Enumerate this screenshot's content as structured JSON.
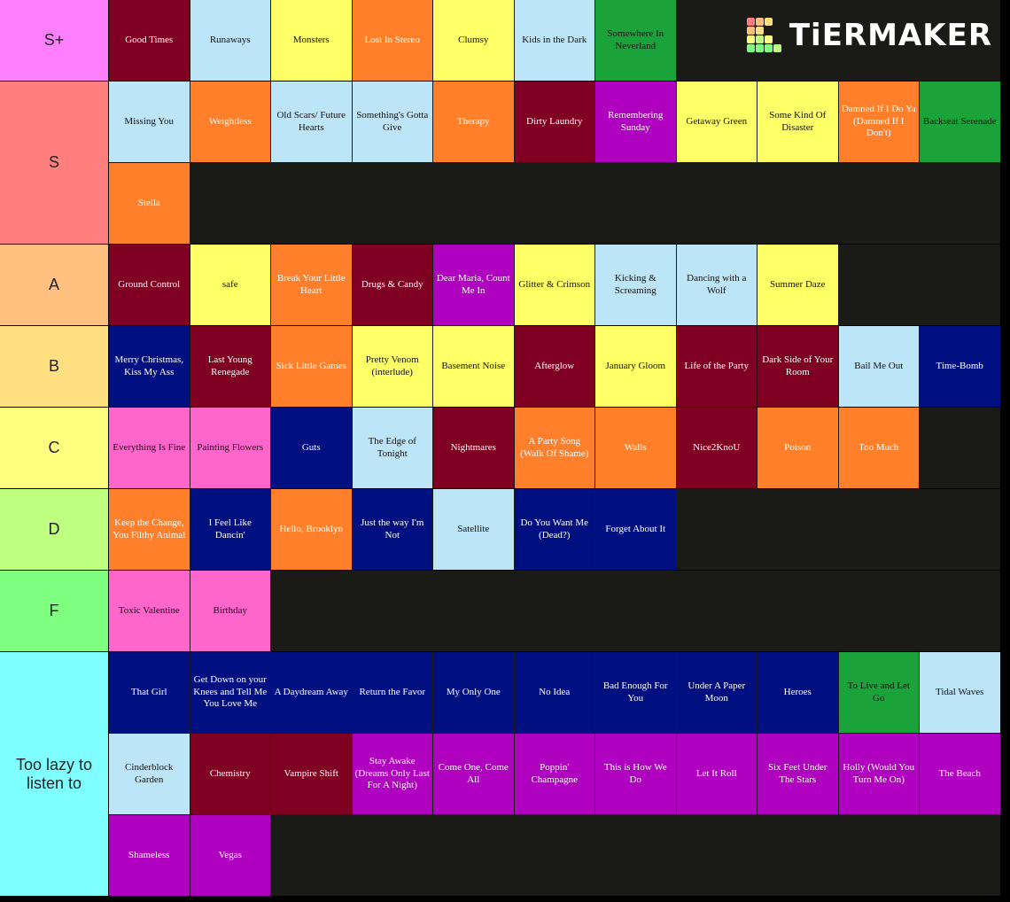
{
  "logo": "TiERMAKER",
  "tiers": [
    {
      "label": "S+",
      "color": "#ff7fff",
      "items": [
        {
          "text": "Good Times",
          "color": "#7f0020"
        },
        {
          "text": "Runaways",
          "color": "#bde5f8"
        },
        {
          "text": "Monsters",
          "color": "#ffff66"
        },
        {
          "text": "Lost In Stereo",
          "color": "#ff7f2a"
        },
        {
          "text": "Clumsy",
          "color": "#ffff66"
        },
        {
          "text": "Kids in the Dark",
          "color": "#bde5f8"
        },
        {
          "text": "Somewhere In Neverland",
          "color": "#1aa33a"
        }
      ]
    },
    {
      "label": "S",
      "color": "#ff7f7f",
      "items": [
        {
          "text": "Missing You",
          "color": "#bde5f8"
        },
        {
          "text": "Weightless",
          "color": "#ff7f2a"
        },
        {
          "text": "Old Scars/ Future Hearts",
          "color": "#bde5f8"
        },
        {
          "text": "Something's Gotta Give",
          "color": "#bde5f8"
        },
        {
          "text": "Therapy",
          "color": "#ff7f2a"
        },
        {
          "text": "Dirty Laundry",
          "color": "#7f0020"
        },
        {
          "text": "Remembering Sunday",
          "color": "#b000c0"
        },
        {
          "text": "Getaway Green",
          "color": "#ffff66"
        },
        {
          "text": "Some Kind Of Disaster",
          "color": "#ffff66"
        },
        {
          "text": "Damned If I Do Ya (Damned If I Don't)",
          "color": "#ff7f2a"
        },
        {
          "text": "Backseat Serenade",
          "color": "#1aa33a"
        },
        {
          "text": "Stella",
          "color": "#ff7f2a"
        }
      ]
    },
    {
      "label": "A",
      "color": "#ffbf7f",
      "items": [
        {
          "text": "Ground Control",
          "color": "#7f0020"
        },
        {
          "text": "safe",
          "color": "#ffff66"
        },
        {
          "text": "Break Your Little Heart",
          "color": "#ff7f2a"
        },
        {
          "text": "Drugs & Candy",
          "color": "#7f0020"
        },
        {
          "text": "Dear Maria, Count Me In",
          "color": "#b000c0"
        },
        {
          "text": "Glitter & Crimson",
          "color": "#ffff66"
        },
        {
          "text": "Kicking & Screaming",
          "color": "#bde5f8"
        },
        {
          "text": "Dancing with a Wolf",
          "color": "#bde5f8"
        },
        {
          "text": "Summer Daze",
          "color": "#ffff66"
        }
      ]
    },
    {
      "label": "B",
      "color": "#ffdf7f",
      "items": [
        {
          "text": "Merry Christmas, Kiss My Ass",
          "color": "#001080"
        },
        {
          "text": "Last Young Renegade",
          "color": "#7f0020"
        },
        {
          "text": "Sick Little Games",
          "color": "#ff7f2a"
        },
        {
          "text": "Pretty Venom (interlude)",
          "color": "#ffff66"
        },
        {
          "text": "Basement Noise",
          "color": "#ffff66"
        },
        {
          "text": "Afterglow",
          "color": "#7f0020"
        },
        {
          "text": "January Gloom",
          "color": "#ffff66"
        },
        {
          "text": "Life of the Party",
          "color": "#7f0020"
        },
        {
          "text": "Dark Side of Your Room",
          "color": "#7f0020"
        },
        {
          "text": "Bail Me Out",
          "color": "#bde5f8"
        },
        {
          "text": "Time-Bomb",
          "color": "#001080"
        }
      ]
    },
    {
      "label": "C",
      "color": "#ffff7f",
      "items": [
        {
          "text": "Everything Is Fine",
          "color": "#ff66cc"
        },
        {
          "text": "Painting Flowers",
          "color": "#ff66cc"
        },
        {
          "text": "Guts",
          "color": "#001080"
        },
        {
          "text": "The Edge of Tonight",
          "color": "#bde5f8"
        },
        {
          "text": "Nightmares",
          "color": "#7f0020"
        },
        {
          "text": "A Party Song (Walk Of Shame)",
          "color": "#ff7f2a"
        },
        {
          "text": "Walls",
          "color": "#ff7f2a"
        },
        {
          "text": "Nice2KnoU",
          "color": "#7f0020"
        },
        {
          "text": "Poison",
          "color": "#ff7f2a"
        },
        {
          "text": "Too Much",
          "color": "#ff7f2a"
        }
      ]
    },
    {
      "label": "D",
      "color": "#bfff7f",
      "items": [
        {
          "text": "Keep the Change, You Filthy Animal",
          "color": "#ff7f2a"
        },
        {
          "text": "I Feel Like Dancin'",
          "color": "#001080"
        },
        {
          "text": "Hello, Brooklyn",
          "color": "#ff7f2a"
        },
        {
          "text": "Just the way I'm Not",
          "color": "#001080"
        },
        {
          "text": "Satellite",
          "color": "#bde5f8"
        },
        {
          "text": "Do You Want Me (Dead?)",
          "color": "#001080"
        },
        {
          "text": "Forget About It",
          "color": "#001080"
        }
      ]
    },
    {
      "label": "F",
      "color": "#7fff7f",
      "items": [
        {
          "text": "Toxic Valentine",
          "color": "#ff66cc"
        },
        {
          "text": "Birthday",
          "color": "#ff66cc"
        }
      ]
    },
    {
      "label": "Too lazy to listen to",
      "color": "#7fffff",
      "items": [
        {
          "text": "That Girl",
          "color": "#001080"
        },
        {
          "text": "Get Down on your Knees and Tell Me You Love Me",
          "color": "#001080"
        },
        {
          "text": "A Daydream Away",
          "color": "#001080"
        },
        {
          "text": "Return the Favor",
          "color": "#001080"
        },
        {
          "text": "My Only One",
          "color": "#001080"
        },
        {
          "text": "No Idea",
          "color": "#001080"
        },
        {
          "text": "Bad Enough For You",
          "color": "#001080"
        },
        {
          "text": "Under A Paper Moon",
          "color": "#001080"
        },
        {
          "text": "Heroes",
          "color": "#001080"
        },
        {
          "text": "To Live and Let Go",
          "color": "#1aa33a"
        },
        {
          "text": "Tidal Waves",
          "color": "#bde5f8"
        },
        {
          "text": "Cinderblock Garden",
          "color": "#bde5f8"
        },
        {
          "text": "Chemistry",
          "color": "#7f0020"
        },
        {
          "text": "Vampire Shift",
          "color": "#7f0020"
        },
        {
          "text": "Stay Awake (Dreams Only Last For A Night)",
          "color": "#b000c0"
        },
        {
          "text": "Come One, Come All",
          "color": "#b000c0"
        },
        {
          "text": "Poppin' Champagne",
          "color": "#b000c0"
        },
        {
          "text": "This is How We Do",
          "color": "#b000c0"
        },
        {
          "text": "Let It Roll",
          "color": "#b000c0"
        },
        {
          "text": "Six Feet Under The Stars",
          "color": "#b000c0"
        },
        {
          "text": "Holly (Would You Turn Me On)",
          "color": "#b000c0"
        },
        {
          "text": "The Beach",
          "color": "#b000c0"
        },
        {
          "text": "Shameless",
          "color": "#b000c0"
        },
        {
          "text": "Vegas",
          "color": "#b000c0"
        }
      ]
    }
  ]
}
